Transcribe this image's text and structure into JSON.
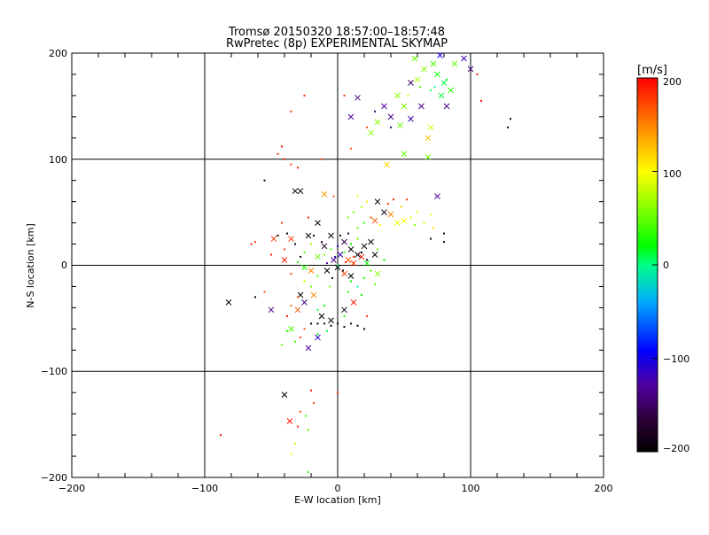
{
  "chart_data": {
    "type": "scatter",
    "title": "Tromsø 20150320 18:57:00–18:57:48",
    "subtitle": "RwPretec (8p) EXPERIMENTAL SKYMAP",
    "xlabel": "E-W location [km]",
    "ylabel": "N-S location [km]",
    "xlim": [
      -200,
      200
    ],
    "ylim": [
      -200,
      200
    ],
    "xticks": [
      -200,
      -100,
      0,
      100,
      200
    ],
    "yticks": [
      -200,
      -100,
      0,
      100,
      200
    ],
    "x_tick_labels": [
      "−200",
      "−100",
      "0",
      "100",
      "200"
    ],
    "y_tick_labels": [
      "−200",
      "−100",
      "0",
      "100",
      "200"
    ],
    "grid": true,
    "colorbar": {
      "label": "[m/s]",
      "range": [
        -200,
        200
      ],
      "ticks": [
        200,
        100,
        0,
        -100,
        -200
      ],
      "tick_labels": [
        "200",
        "100",
        "0",
        "−100",
        "−200"
      ],
      "colormap": "rainbow (black-purple-blue-cyan-green-yellow-red)"
    },
    "marker_types": [
      "x",
      "dot"
    ],
    "points": [
      {
        "x": 72,
        "y": 190,
        "v": 40,
        "m": "x"
      },
      {
        "x": 75,
        "y": 180,
        "v": 20,
        "m": "x"
      },
      {
        "x": 80,
        "y": 172,
        "v": 10,
        "m": "x"
      },
      {
        "x": 65,
        "y": 185,
        "v": 60,
        "m": "x"
      },
      {
        "x": 85,
        "y": 165,
        "v": 30,
        "m": "x"
      },
      {
        "x": 60,
        "y": 175,
        "v": 70,
        "m": "x"
      },
      {
        "x": 58,
        "y": 195,
        "v": 50,
        "m": "x"
      },
      {
        "x": 88,
        "y": 190,
        "v": 50,
        "m": "x"
      },
      {
        "x": 78,
        "y": 160,
        "v": 10,
        "m": "x"
      },
      {
        "x": 45,
        "y": 160,
        "v": 60,
        "m": "x"
      },
      {
        "x": 50,
        "y": 150,
        "v": 55,
        "m": "x"
      },
      {
        "x": 55,
        "y": 138,
        "v": -120,
        "m": "x"
      },
      {
        "x": 35,
        "y": 150,
        "v": -130,
        "m": "x"
      },
      {
        "x": 40,
        "y": 140,
        "v": -140,
        "m": "x"
      },
      {
        "x": 30,
        "y": 135,
        "v": 60,
        "m": "x"
      },
      {
        "x": 25,
        "y": 125,
        "v": 60,
        "m": "x"
      },
      {
        "x": 15,
        "y": 158,
        "v": -140,
        "m": "x"
      },
      {
        "x": 10,
        "y": 140,
        "v": -130,
        "m": "x"
      },
      {
        "x": 47,
        "y": 132,
        "v": 50,
        "m": "x"
      },
      {
        "x": 63,
        "y": 150,
        "v": -140,
        "m": "x"
      },
      {
        "x": 70,
        "y": 130,
        "v": 80,
        "m": "x"
      },
      {
        "x": 68,
        "y": 120,
        "v": 130,
        "m": "x"
      },
      {
        "x": 55,
        "y": 172,
        "v": -150,
        "m": "x"
      },
      {
        "x": 95,
        "y": 195,
        "v": -120,
        "m": "x"
      },
      {
        "x": 100,
        "y": 185,
        "v": -140,
        "m": "x"
      },
      {
        "x": 50,
        "y": 105,
        "v": 50,
        "m": "x"
      },
      {
        "x": 68,
        "y": 102,
        "v": 50,
        "m": "x"
      },
      {
        "x": 37,
        "y": 95,
        "v": 120,
        "m": "x"
      },
      {
        "x": 82,
        "y": 150,
        "v": -140,
        "m": "x"
      },
      {
        "x": 77,
        "y": 198,
        "v": -100,
        "m": "x"
      },
      {
        "x": 70,
        "y": 165,
        "v": 10,
        "m": "dot"
      },
      {
        "x": 73,
        "y": 168,
        "v": 0,
        "m": "dot"
      },
      {
        "x": 82,
        "y": 175,
        "v": 20,
        "m": "dot"
      },
      {
        "x": 62,
        "y": 168,
        "v": 40,
        "m": "dot"
      },
      {
        "x": 40,
        "y": 130,
        "v": -150,
        "m": "dot"
      },
      {
        "x": 28,
        "y": 145,
        "v": -160,
        "m": "dot"
      },
      {
        "x": 105,
        "y": 180,
        "v": 190,
        "m": "dot"
      },
      {
        "x": 108,
        "y": 155,
        "v": 200,
        "m": "dot"
      },
      {
        "x": 130,
        "y": 138,
        "v": -200,
        "m": "dot"
      },
      {
        "x": 128,
        "y": 130,
        "v": -190,
        "m": "dot"
      },
      {
        "x": 22,
        "y": 130,
        "v": 170,
        "m": "dot"
      },
      {
        "x": 5,
        "y": 160,
        "v": 180,
        "m": "dot"
      },
      {
        "x": -25,
        "y": 160,
        "v": 190,
        "m": "dot"
      },
      {
        "x": -35,
        "y": 145,
        "v": 185,
        "m": "dot"
      },
      {
        "x": 53,
        "y": 160,
        "v": 80,
        "m": "dot"
      },
      {
        "x": -45,
        "y": 105,
        "v": 180,
        "m": "dot"
      },
      {
        "x": -40,
        "y": 100,
        "v": 190,
        "m": "dot"
      },
      {
        "x": -35,
        "y": 95,
        "v": 175,
        "m": "dot"
      },
      {
        "x": -30,
        "y": 92,
        "v": 185,
        "m": "dot"
      },
      {
        "x": -42,
        "y": 112,
        "v": 195,
        "m": "dot"
      },
      {
        "x": -55,
        "y": 80,
        "v": -200,
        "m": "dot"
      },
      {
        "x": 10,
        "y": 110,
        "v": 170,
        "m": "dot"
      },
      {
        "x": -12,
        "y": 100,
        "v": 180,
        "m": "dot"
      },
      {
        "x": -32,
        "y": 70,
        "v": -200,
        "m": "x"
      },
      {
        "x": -28,
        "y": 70,
        "v": -200,
        "m": "x"
      },
      {
        "x": -10,
        "y": 67,
        "v": 140,
        "m": "x"
      },
      {
        "x": 30,
        "y": 60,
        "v": -190,
        "m": "x"
      },
      {
        "x": 35,
        "y": 50,
        "v": -180,
        "m": "x"
      },
      {
        "x": 40,
        "y": 48,
        "v": 150,
        "m": "x"
      },
      {
        "x": 28,
        "y": 42,
        "v": 170,
        "m": "x"
      },
      {
        "x": 75,
        "y": 65,
        "v": -130,
        "m": "x"
      },
      {
        "x": 45,
        "y": 40,
        "v": 90,
        "m": "x"
      },
      {
        "x": 50,
        "y": 42,
        "v": 100,
        "m": "x"
      },
      {
        "x": 48,
        "y": 55,
        "v": 120,
        "m": "dot"
      },
      {
        "x": 55,
        "y": 45,
        "v": 95,
        "m": "dot"
      },
      {
        "x": 60,
        "y": 50,
        "v": 85,
        "m": "dot"
      },
      {
        "x": 38,
        "y": 58,
        "v": 180,
        "m": "dot"
      },
      {
        "x": 42,
        "y": 62,
        "v": 190,
        "m": "dot"
      },
      {
        "x": 52,
        "y": 62,
        "v": 185,
        "m": "dot"
      },
      {
        "x": 25,
        "y": 45,
        "v": 160,
        "m": "dot"
      },
      {
        "x": 20,
        "y": 40,
        "v": 30,
        "m": "dot"
      },
      {
        "x": 15,
        "y": 35,
        "v": 40,
        "m": "dot"
      },
      {
        "x": 12,
        "y": 50,
        "v": 50,
        "m": "dot"
      },
      {
        "x": 8,
        "y": 45,
        "v": 60,
        "m": "dot"
      },
      {
        "x": 18,
        "y": 55,
        "v": 70,
        "m": "dot"
      },
      {
        "x": 65,
        "y": 40,
        "v": 80,
        "m": "dot"
      },
      {
        "x": 70,
        "y": 48,
        "v": 90,
        "m": "dot"
      },
      {
        "x": 58,
        "y": 38,
        "v": 60,
        "m": "dot"
      },
      {
        "x": 72,
        "y": 35,
        "v": 110,
        "m": "dot"
      },
      {
        "x": 80,
        "y": 30,
        "v": -190,
        "m": "dot"
      },
      {
        "x": 80,
        "y": 22,
        "v": -200,
        "m": "dot"
      },
      {
        "x": 70,
        "y": 25,
        "v": -190,
        "m": "dot"
      },
      {
        "x": -15,
        "y": 40,
        "v": -200,
        "m": "x"
      },
      {
        "x": -5,
        "y": 28,
        "v": -190,
        "m": "x"
      },
      {
        "x": -22,
        "y": 28,
        "v": -190,
        "m": "x"
      },
      {
        "x": -35,
        "y": 25,
        "v": 180,
        "m": "x"
      },
      {
        "x": -10,
        "y": 18,
        "v": -180,
        "m": "x"
      },
      {
        "x": 5,
        "y": 22,
        "v": -160,
        "m": "x"
      },
      {
        "x": 10,
        "y": 15,
        "v": -200,
        "m": "x"
      },
      {
        "x": 15,
        "y": 10,
        "v": -190,
        "m": "x"
      },
      {
        "x": 2,
        "y": 10,
        "v": -120,
        "m": "x"
      },
      {
        "x": -3,
        "y": 5,
        "v": -140,
        "m": "x"
      },
      {
        "x": 8,
        "y": 5,
        "v": 170,
        "m": "x"
      },
      {
        "x": 12,
        "y": 2,
        "v": 180,
        "m": "x"
      },
      {
        "x": 18,
        "y": 8,
        "v": 190,
        "m": "x"
      },
      {
        "x": 20,
        "y": 18,
        "v": -200,
        "m": "x"
      },
      {
        "x": 25,
        "y": 22,
        "v": -190,
        "m": "x"
      },
      {
        "x": -8,
        "y": -5,
        "v": -200,
        "m": "x"
      },
      {
        "x": 0,
        "y": -2,
        "v": -190,
        "m": "x"
      },
      {
        "x": 5,
        "y": -8,
        "v": 180,
        "m": "x"
      },
      {
        "x": 10,
        "y": -10,
        "v": -200,
        "m": "x"
      },
      {
        "x": -15,
        "y": 8,
        "v": 50,
        "m": "x"
      },
      {
        "x": -20,
        "y": -5,
        "v": 150,
        "m": "x"
      },
      {
        "x": -25,
        "y": -2,
        "v": 30,
        "m": "x"
      },
      {
        "x": 28,
        "y": 10,
        "v": -190,
        "m": "x"
      },
      {
        "x": 22,
        "y": 2,
        "v": 20,
        "m": "x"
      },
      {
        "x": -28,
        "y": -28,
        "v": -200,
        "m": "x"
      },
      {
        "x": -25,
        "y": -35,
        "v": -140,
        "m": "x"
      },
      {
        "x": -18,
        "y": -28,
        "v": 150,
        "m": "x"
      },
      {
        "x": 12,
        "y": -35,
        "v": 190,
        "m": "x"
      },
      {
        "x": 5,
        "y": -42,
        "v": -190,
        "m": "x"
      },
      {
        "x": -12,
        "y": -48,
        "v": -200,
        "m": "x"
      },
      {
        "x": -5,
        "y": -52,
        "v": -200,
        "m": "x"
      },
      {
        "x": -15,
        "y": -68,
        "v": -110,
        "m": "x"
      },
      {
        "x": -30,
        "y": -42,
        "v": 170,
        "m": "x"
      },
      {
        "x": -50,
        "y": -42,
        "v": -140,
        "m": "x"
      },
      {
        "x": -82,
        "y": -35,
        "v": -200,
        "m": "x"
      },
      {
        "x": -48,
        "y": 25,
        "v": 180,
        "m": "x"
      },
      {
        "x": -40,
        "y": 5,
        "v": 190,
        "m": "x"
      },
      {
        "x": -22,
        "y": -78,
        "v": -130,
        "m": "x"
      },
      {
        "x": 30,
        "y": -8,
        "v": 60,
        "m": "x"
      },
      {
        "x": -35,
        "y": -60,
        "v": 40,
        "m": "x"
      },
      {
        "x": -40,
        "y": -122,
        "v": -200,
        "m": "x"
      },
      {
        "x": -36,
        "y": -147,
        "v": 190,
        "m": "x"
      },
      {
        "x": 5,
        "y": 12,
        "v": 30,
        "m": "dot"
      },
      {
        "x": -5,
        "y": 15,
        "v": 40,
        "m": "dot"
      },
      {
        "x": 10,
        "y": 20,
        "v": 20,
        "m": "dot"
      },
      {
        "x": 15,
        "y": 25,
        "v": 50,
        "m": "dot"
      },
      {
        "x": -10,
        "y": 10,
        "v": 60,
        "m": "dot"
      },
      {
        "x": 0,
        "y": 0,
        "v": 10,
        "m": "dot"
      },
      {
        "x": -15,
        "y": -10,
        "v": 40,
        "m": "dot"
      },
      {
        "x": 10,
        "y": -15,
        "v": 20,
        "m": "dot"
      },
      {
        "x": 15,
        "y": -20,
        "v": 0,
        "m": "dot"
      },
      {
        "x": 20,
        "y": -12,
        "v": 30,
        "m": "dot"
      },
      {
        "x": 25,
        "y": -5,
        "v": 50,
        "m": "dot"
      },
      {
        "x": -20,
        "y": 20,
        "v": 70,
        "m": "dot"
      },
      {
        "x": -25,
        "y": 12,
        "v": 40,
        "m": "dot"
      },
      {
        "x": 30,
        "y": 15,
        "v": 60,
        "m": "dot"
      },
      {
        "x": 35,
        "y": 5,
        "v": 20,
        "m": "dot"
      },
      {
        "x": -30,
        "y": 3,
        "v": 30,
        "m": "dot"
      },
      {
        "x": -35,
        "y": -8,
        "v": 170,
        "m": "dot"
      },
      {
        "x": -40,
        "y": 15,
        "v": 180,
        "m": "dot"
      },
      {
        "x": -45,
        "y": 28,
        "v": -200,
        "m": "dot"
      },
      {
        "x": -50,
        "y": 10,
        "v": 190,
        "m": "dot"
      },
      {
        "x": -38,
        "y": 30,
        "v": -200,
        "m": "dot"
      },
      {
        "x": -32,
        "y": 20,
        "v": -190,
        "m": "dot"
      },
      {
        "x": -28,
        "y": 8,
        "v": -200,
        "m": "dot"
      },
      {
        "x": -18,
        "y": 28,
        "v": -190,
        "m": "dot"
      },
      {
        "x": -12,
        "y": 22,
        "v": -180,
        "m": "dot"
      },
      {
        "x": 2,
        "y": 28,
        "v": -190,
        "m": "dot"
      },
      {
        "x": 8,
        "y": 30,
        "v": -170,
        "m": "dot"
      },
      {
        "x": 18,
        "y": 12,
        "v": -200,
        "m": "dot"
      },
      {
        "x": 22,
        "y": 5,
        "v": -190,
        "m": "dot"
      },
      {
        "x": 12,
        "y": 8,
        "v": 180,
        "m": "dot"
      },
      {
        "x": 6,
        "y": 3,
        "v": 190,
        "m": "dot"
      },
      {
        "x": -2,
        "y": 8,
        "v": -120,
        "m": "dot"
      },
      {
        "x": -8,
        "y": 2,
        "v": -130,
        "m": "dot"
      },
      {
        "x": 0,
        "y": 18,
        "v": -110,
        "m": "dot"
      },
      {
        "x": 4,
        "y": -5,
        "v": -200,
        "m": "dot"
      },
      {
        "x": -4,
        "y": -12,
        "v": -190,
        "m": "dot"
      },
      {
        "x": 8,
        "y": -25,
        "v": 30,
        "m": "dot"
      },
      {
        "x": 18,
        "y": -28,
        "v": 20,
        "m": "dot"
      },
      {
        "x": -6,
        "y": -20,
        "v": 60,
        "m": "dot"
      },
      {
        "x": -20,
        "y": -20,
        "v": 50,
        "m": "dot"
      },
      {
        "x": -25,
        "y": -15,
        "v": 80,
        "m": "dot"
      },
      {
        "x": 28,
        "y": -18,
        "v": 40,
        "m": "dot"
      },
      {
        "x": -30,
        "y": -30,
        "v": 170,
        "m": "dot"
      },
      {
        "x": -35,
        "y": -38,
        "v": 160,
        "m": "dot"
      },
      {
        "x": -38,
        "y": -48,
        "v": 190,
        "m": "dot"
      },
      {
        "x": -10,
        "y": -38,
        "v": 20,
        "m": "dot"
      },
      {
        "x": -15,
        "y": -42,
        "v": 10,
        "m": "dot"
      },
      {
        "x": 5,
        "y": -48,
        "v": 30,
        "m": "dot"
      },
      {
        "x": -20,
        "y": -55,
        "v": -200,
        "m": "dot"
      },
      {
        "x": -15,
        "y": -55,
        "v": -200,
        "m": "dot"
      },
      {
        "x": -10,
        "y": -55,
        "v": -190,
        "m": "dot"
      },
      {
        "x": -5,
        "y": -57,
        "v": -200,
        "m": "dot"
      },
      {
        "x": 0,
        "y": -55,
        "v": -190,
        "m": "dot"
      },
      {
        "x": 5,
        "y": -58,
        "v": -200,
        "m": "dot"
      },
      {
        "x": 10,
        "y": -55,
        "v": -190,
        "m": "dot"
      },
      {
        "x": 15,
        "y": -57,
        "v": -200,
        "m": "dot"
      },
      {
        "x": 20,
        "y": -60,
        "v": -190,
        "m": "dot"
      },
      {
        "x": -25,
        "y": -60,
        "v": 170,
        "m": "dot"
      },
      {
        "x": -28,
        "y": -68,
        "v": 180,
        "m": "dot"
      },
      {
        "x": -32,
        "y": -72,
        "v": 40,
        "m": "dot"
      },
      {
        "x": -15,
        "y": -65,
        "v": 20,
        "m": "dot"
      },
      {
        "x": -8,
        "y": -62,
        "v": 10,
        "m": "dot"
      },
      {
        "x": 22,
        "y": -48,
        "v": 180,
        "m": "dot"
      },
      {
        "x": -38,
        "y": -62,
        "v": 30,
        "m": "dot"
      },
      {
        "x": -42,
        "y": -75,
        "v": 50,
        "m": "dot"
      },
      {
        "x": -62,
        "y": -30,
        "v": -200,
        "m": "dot"
      },
      {
        "x": -55,
        "y": -25,
        "v": 170,
        "m": "dot"
      },
      {
        "x": -65,
        "y": 20,
        "v": 190,
        "m": "dot"
      },
      {
        "x": -62,
        "y": 22,
        "v": 180,
        "m": "dot"
      },
      {
        "x": -42,
        "y": 40,
        "v": 180,
        "m": "dot"
      },
      {
        "x": -22,
        "y": 45,
        "v": 190,
        "m": "dot"
      },
      {
        "x": -3,
        "y": 65,
        "v": 170,
        "m": "dot"
      },
      {
        "x": 15,
        "y": 65,
        "v": 90,
        "m": "dot"
      },
      {
        "x": 32,
        "y": 38,
        "v": 100,
        "m": "dot"
      },
      {
        "x": 22,
        "y": 60,
        "v": 110,
        "m": "dot"
      },
      {
        "x": -28,
        "y": -138,
        "v": 170,
        "m": "dot"
      },
      {
        "x": -24,
        "y": -142,
        "v": 40,
        "m": "dot"
      },
      {
        "x": -30,
        "y": -152,
        "v": 180,
        "m": "dot"
      },
      {
        "x": -22,
        "y": -155,
        "v": 50,
        "m": "dot"
      },
      {
        "x": -32,
        "y": -168,
        "v": 80,
        "m": "dot"
      },
      {
        "x": -35,
        "y": -178,
        "v": 100,
        "m": "dot"
      },
      {
        "x": -88,
        "y": -160,
        "v": 190,
        "m": "dot"
      },
      {
        "x": 0,
        "y": -120,
        "v": 180,
        "m": "dot"
      },
      {
        "x": -22,
        "y": -195,
        "v": 30,
        "m": "dot"
      },
      {
        "x": -20,
        "y": -118,
        "v": 190,
        "m": "dot"
      },
      {
        "x": -18,
        "y": -130,
        "v": 170,
        "m": "dot"
      }
    ]
  }
}
